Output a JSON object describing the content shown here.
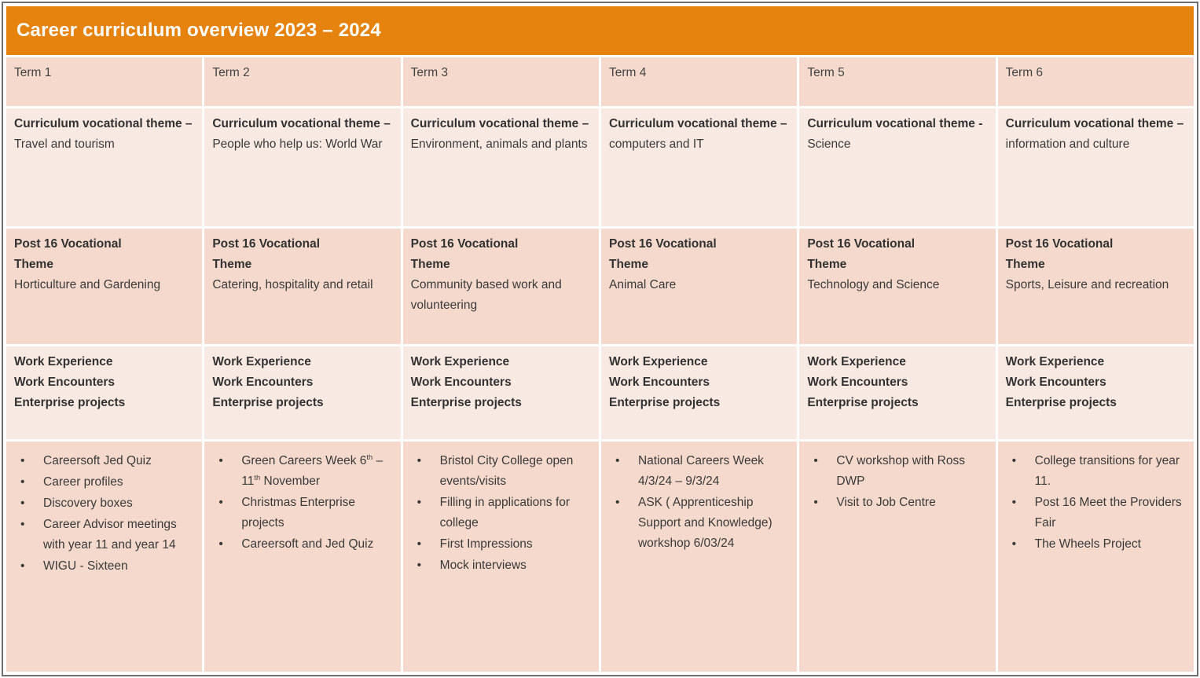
{
  "title": "Career curriculum overview 2023 – 2024",
  "colors": {
    "header_orange": "#E6830F",
    "band_dark_peach": "#F4D9CC",
    "band_light_peach": "#F9E9E3",
    "outer_border_grey": "#6F6F6F",
    "cell_gap_white": "#FFFFFF",
    "title_text": "#FFFFFF",
    "body_text": "#3A3A3A"
  },
  "work_experience_lines": [
    "Work Experience",
    "Work Encounters",
    "Enterprise projects"
  ],
  "terms": [
    {
      "name": "Term 1",
      "curriculum_label": "Curriculum vocational theme – ",
      "curriculum_value": "Travel and tourism",
      "post16_label": "Post 16 Vocational Theme",
      "post16_value": "Horticulture and Gardening",
      "activities": [
        "Careersoft Jed Quiz",
        "Career profiles",
        "Discovery boxes",
        "Career Advisor meetings with year 11 and year 14",
        "WIGU - Sixteen"
      ]
    },
    {
      "name": "Term 2",
      "curriculum_label": "Curriculum vocational theme –",
      "curriculum_value": "People who help us: World War",
      "post16_label": "Post 16 Vocational Theme",
      "post16_value": "Catering, hospitality and retail",
      "green_week_parts": [
        "Green Careers Week 6",
        "th",
        " – 11",
        "th",
        " November"
      ],
      "activities": [
        "Christmas Enterprise projects",
        "Careersoft and Jed Quiz"
      ]
    },
    {
      "name": "Term 3",
      "curriculum_label": "Curriculum vocational theme – ",
      "curriculum_value": "Environment, animals and plants",
      "post16_label": "Post 16 Vocational Theme",
      "post16_value": "Community based work and volunteering",
      "activities": [
        "Bristol City College open events/visits",
        "Filling in applications for college",
        "First Impressions",
        "Mock interviews"
      ]
    },
    {
      "name": "Term 4",
      "curriculum_label": "Curriculum vocational theme – ",
      "curriculum_value": "computers and IT",
      "post16_label": "Post 16 Vocational Theme",
      "post16_value": "Animal Care",
      "activities": [
        "National Careers Week 4/3/24 – 9/3/24",
        "ASK ( Apprenticeship Support and Knowledge) workshop 6/03/24"
      ]
    },
    {
      "name": "Term 5",
      "curriculum_label": "Curriculum vocational theme - ",
      "curriculum_value": "Science",
      "post16_label": "Post 16 Vocational Theme",
      "post16_value": "Technology and Science",
      "activities": [
        "CV workshop with Ross DWP",
        "Visit to Job Centre"
      ]
    },
    {
      "name": "Term 6",
      "curriculum_label": "Curriculum vocational theme – ",
      "curriculum_value": "information and culture",
      "post16_label": "Post 16 Vocational Theme",
      "post16_value": "Sports, Leisure and recreation",
      "activities": [
        "College transitions for year 11.",
        "Post 16 Meet the Providers Fair",
        "The Wheels Project"
      ]
    }
  ]
}
